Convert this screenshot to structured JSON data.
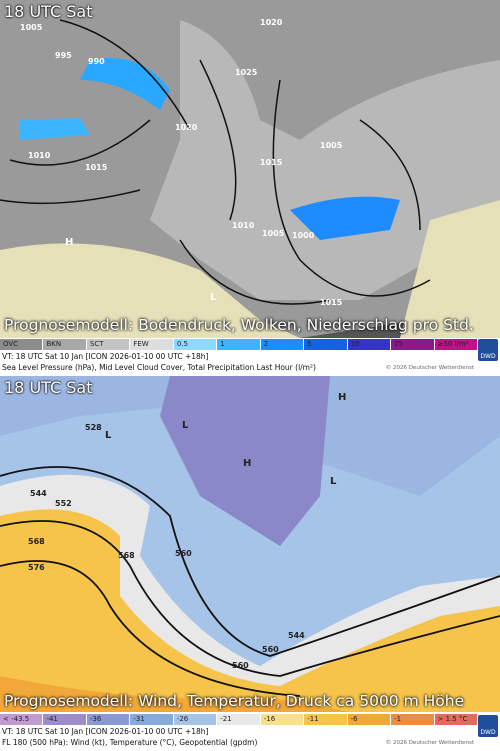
{
  "panels": [
    {
      "time_label": "18 UTC Sat",
      "caption": "Prognosemodell: Bodendruck, Wolken, Niederschlag pro Std.",
      "map_labels": [
        "1005",
        "995",
        "990",
        "1020",
        "1025",
        "1010",
        "1015",
        "1020",
        "1015",
        "1005",
        "1010",
        "1005",
        "1000",
        "1015",
        "L",
        "H"
      ],
      "legend": [
        {
          "label": "OVC",
          "color": "#8c8c8c"
        },
        {
          "label": "BKN",
          "color": "#a8a8a8"
        },
        {
          "label": "SCT",
          "color": "#c4c4c4"
        },
        {
          "label": "FEW",
          "color": "#dedede"
        },
        {
          "label": "0.5",
          "color": "#8fd8ff"
        },
        {
          "label": "1",
          "color": "#3cb4ff"
        },
        {
          "label": "2",
          "color": "#1e8cff"
        },
        {
          "label": "5",
          "color": "#1860e8"
        },
        {
          "label": "10",
          "color": "#3434c8"
        },
        {
          "label": "25",
          "color": "#8a1a8a"
        },
        {
          "label": "≥50 l/m²",
          "color": "#c0108a"
        }
      ],
      "footer": {
        "valid": "VT: 18 UTC Sat   10 Jan [ICON 2026-01-10 00 UTC +18h]",
        "description": "Sea Level Pressure (hPa), Mid Level Cloud Cover, Total Precipitation Last Hour (l/m²)",
        "copyright": "© 2026 Deutscher Wetterdienst"
      },
      "logo": "DWD"
    },
    {
      "time_label": "18 UTC Sat",
      "caption": "Prognosemodell: Wind, Temperatur, Druck ca 5000 m Höhe",
      "map_labels": [
        "528",
        "544",
        "552",
        "560",
        "568",
        "576",
        "560",
        "544",
        "560",
        "568",
        "L",
        "L",
        "H",
        "L",
        "H"
      ],
      "legend": [
        {
          "label": "< -43.5",
          "color": "#c09ad0"
        },
        {
          "label": "-41",
          "color": "#9c8ccc"
        },
        {
          "label": "-36",
          "color": "#8a98d4"
        },
        {
          "label": "-31",
          "color": "#86aadc"
        },
        {
          "label": "-26",
          "color": "#a6c4e8"
        },
        {
          "label": "-21",
          "color": "#e8e8e8"
        },
        {
          "label": "-16",
          "color": "#f8e088"
        },
        {
          "label": "-11",
          "color": "#f6c44a"
        },
        {
          "label": "-6",
          "color": "#f2a838"
        },
        {
          "label": "-1",
          "color": "#ec8c40"
        },
        {
          "label": "> 1.5 °C",
          "color": "#e46a5c"
        }
      ],
      "footer": {
        "valid": "VT: 18 UTC Sat   10 Jan [ICON 2026-01-10 00 UTC +18h]",
        "description": "FL 180 (500 hPa): Wind (kt), Temperature (°C), Geopotential (gpdm)",
        "copyright": "© 2026 Deutscher Wetterdienst"
      },
      "logo": "DWD"
    }
  ]
}
